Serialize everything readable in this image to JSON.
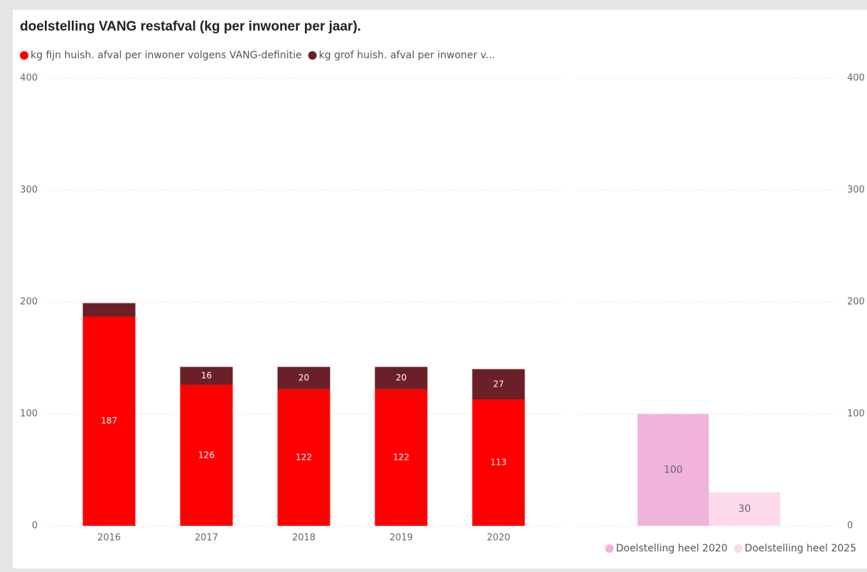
{
  "chart_data": [
    {
      "type": "bar",
      "stacked": true,
      "title": "doelstelling VANG restafval (kg per inwoner per jaar).",
      "categories": [
        "2016",
        "2017",
        "2018",
        "2019",
        "2020"
      ],
      "series": [
        {
          "name": "kg fijn huish. afval per inwoner volgens VANG-definitie",
          "color": "#ff0000",
          "label_color": "#ffffff",
          "values": [
            187,
            126,
            122,
            122,
            113
          ]
        },
        {
          "name": "kg grof huish. afval per inwoner v...",
          "color": "#6b1f26",
          "label_color": "#ffffff",
          "values": [
            12,
            16,
            20,
            20,
            27
          ]
        }
      ],
      "ylim": [
        0,
        400
      ],
      "yticks": [
        0,
        100,
        200,
        300,
        400
      ],
      "grid": true,
      "legend": "top-left",
      "y_axis_side": "left"
    },
    {
      "type": "bar",
      "stacked": false,
      "categories": [
        null
      ],
      "series": [
        {
          "name": "Doelstelling heel 2020",
          "color": "#f0b4dc",
          "label_color": "#666666",
          "values": [
            100
          ]
        },
        {
          "name": "Doelstelling heel 2025",
          "color": "#fcdaec",
          "label_color": "#666666",
          "values": [
            30
          ]
        }
      ],
      "ylim": [
        0,
        400
      ],
      "yticks": [
        0,
        100,
        200,
        300,
        400
      ],
      "grid": true,
      "legend": "bottom-right",
      "y_axis_side": "right"
    }
  ]
}
